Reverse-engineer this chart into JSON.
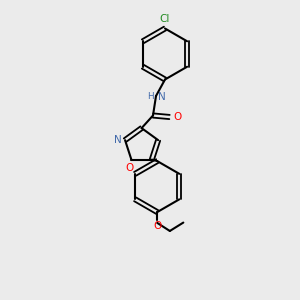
{
  "background_color": "#ebebeb",
  "bond_color": "#000000",
  "atom_colors": {
    "N": "#4169aa",
    "NH": "#4169aa",
    "O": "#ff0000",
    "Cl": "#228B22",
    "C": "#000000"
  },
  "figsize": [
    3.0,
    3.0
  ],
  "dpi": 100,
  "lw": 1.5,
  "lw_double": 1.3,
  "font_size": 7.5
}
